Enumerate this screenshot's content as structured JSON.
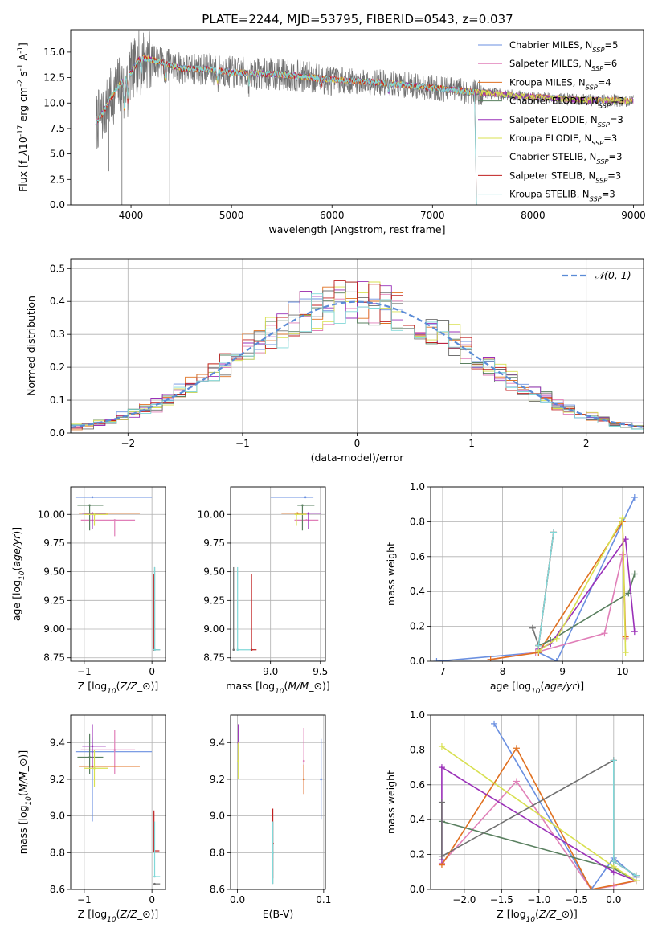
{
  "figure": {
    "title": "PLATE=2244, MJD=53795, FIBERID=0543, z=0.037"
  },
  "colors": {
    "Chabrier MILES": "#6a8fe0",
    "Salpeter MILES": "#e07fb8",
    "Kroupa MILES": "#e07020",
    "Chabrier ELODIE": "#5a8060",
    "Salpeter ELODIE": "#9a30b8",
    "Kroupa ELODIE": "#d8e050",
    "Chabrier STELIB": "#707070",
    "Salpeter STELIB": "#c02020",
    "Kroupa STELIB": "#80d8d8",
    "gaussian": "#5a8bd6"
  },
  "chart_data": [
    {
      "id": "spectrum",
      "type": "line",
      "title": "PLATE=2244, MJD=53795, FIBERID=0543, z=0.037",
      "xlabel": "wavelength [Angstrom, rest frame]",
      "ylabel": "Flux [f$_\\lambda$10$^{-17}$ erg cm$^{-2}$ s$^{-1}$ A$^{-1}$]",
      "xlim": [
        3400,
        9100
      ],
      "ylim": [
        0,
        17.2
      ],
      "xticks": [
        4000,
        5000,
        6000,
        7000,
        8000,
        9000
      ],
      "yticks": [
        0.0,
        2.5,
        5.0,
        7.5,
        10.0,
        12.5,
        15.0
      ],
      "legend_position": "top-right",
      "legend": [
        "Chabrier MILES, N$_{SSP}$=5",
        "Salpeter MILES, N$_{SSP}$=6",
        "Kroupa MILES, N$_{SSP}$=4",
        "Chabrier ELODIE, N$_{SSP}$=3",
        "Salpeter ELODIE, N$_{SSP}$=3",
        "Kroupa ELODIE, N$_{SSP}$=3",
        "Chabrier STELIB, N$_{SSP}$=3",
        "Salpeter STELIB, N$_{SSP}$=3",
        "Kroupa STELIB, N$_{SSP}$=3"
      ],
      "continuum": {
        "x": [
          3650,
          3720,
          3800,
          3900,
          4000,
          4100,
          4300,
          4500,
          4800,
          5000,
          5500,
          6000,
          6500,
          7000,
          7500,
          8000,
          8500,
          9000
        ],
        "y": [
          8.0,
          9.0,
          10.5,
          12.0,
          13.0,
          14.5,
          14.0,
          13.4,
          13.3,
          13.0,
          12.8,
          12.3,
          12.0,
          11.5,
          11.0,
          10.6,
          10.3,
          10.2
        ]
      },
      "data_range": [
        3650,
        9000
      ]
    },
    {
      "id": "residuals",
      "type": "line",
      "xlabel": "(data-model)/error",
      "ylabel": "Normed distribution",
      "xlim": [
        -2.5,
        2.5
      ],
      "ylim": [
        0,
        0.53
      ],
      "xticks": [
        -2,
        -1,
        0,
        1,
        2
      ],
      "yticks": [
        0.0,
        0.1,
        0.2,
        0.3,
        0.4,
        0.5
      ],
      "legend_position": "top-right",
      "legend": [
        "$\\mathcal{N}(0, 1)$"
      ],
      "bin_width": 0.1,
      "gaussian": {
        "mean": 0,
        "sigma": 1
      }
    },
    {
      "id": "age_vs_Z",
      "type": "scatter",
      "xlabel": "Z [log$_{10}$($Z/Z_\\odot$)]",
      "ylabel": "age  [log$_{10}$($age/yr$)]",
      "xlim": [
        -1.2,
        0.2
      ],
      "ylim": [
        8.72,
        10.24
      ],
      "xticks": [
        -1,
        0
      ],
      "yticks": [
        8.75,
        9.0,
        9.25,
        9.5,
        9.75,
        10.0
      ],
      "points": [
        {
          "model": "Chabrier MILES",
          "x": -0.88,
          "y": 10.15,
          "xerr": [
            0.25,
            0.88
          ],
          "yerr": [
            0.0,
            0.0
          ]
        },
        {
          "model": "Salpeter MILES",
          "x": -0.55,
          "y": 9.95,
          "xerr": [
            0.5,
            0.3
          ],
          "yerr": [
            0.14,
            0.0
          ]
        },
        {
          "model": "Kroupa MILES",
          "x": -0.88,
          "y": 10.01,
          "xerr": [
            0.2,
            0.7
          ],
          "yerr": [
            0.0,
            0.0
          ]
        },
        {
          "model": "Chabrier ELODIE",
          "x": -0.92,
          "y": 10.08,
          "xerr": [
            0.18,
            0.2
          ],
          "yerr": [
            0.22,
            0.0
          ]
        },
        {
          "model": "Salpeter ELODIE",
          "x": -0.88,
          "y": 10.01,
          "xerr": [
            0.15,
            0.2
          ],
          "yerr": [
            0.14,
            0.0
          ]
        },
        {
          "model": "Kroupa ELODIE",
          "x": -0.85,
          "y": 10.0,
          "xerr": [
            0.15,
            0.2
          ],
          "yerr": [
            0.1,
            0.0
          ]
        },
        {
          "model": "Chabrier STELIB",
          "x": 0.04,
          "y": 8.82,
          "xerr": [
            0.02,
            0.08
          ],
          "yerr": [
            0.0,
            0.72
          ]
        },
        {
          "model": "Salpeter STELIB",
          "x": 0.03,
          "y": 8.82,
          "xerr": [
            0.02,
            0.02
          ],
          "yerr": [
            0.0,
            0.66
          ]
        },
        {
          "model": "Kroupa STELIB",
          "x": 0.04,
          "y": 8.82,
          "xerr": [
            0.02,
            0.08
          ],
          "yerr": [
            0.0,
            0.72
          ]
        }
      ]
    },
    {
      "id": "age_vs_mass",
      "type": "scatter",
      "xlabel": "mass [log$_{10}$($M/M_\\odot$)]",
      "xlim": [
        8.6,
        9.55
      ],
      "ylim": [
        8.72,
        10.24
      ],
      "xticks": [
        9.0,
        9.5
      ],
      "yticks": [
        8.75,
        9.0,
        9.25,
        9.5,
        9.75,
        10.0
      ],
      "points": [
        {
          "model": "Chabrier MILES",
          "x": 9.35,
          "y": 10.15,
          "xerr": [
            0.35,
            0.08
          ],
          "yerr": [
            0.0,
            0.0
          ]
        },
        {
          "model": "Salpeter MILES",
          "x": 9.36,
          "y": 9.95,
          "xerr": [
            0.12,
            0.12
          ],
          "yerr": [
            0.0,
            0.0
          ]
        },
        {
          "model": "Kroupa MILES",
          "x": 9.27,
          "y": 10.01,
          "xerr": [
            0.16,
            0.1
          ],
          "yerr": [
            0.0,
            0.0
          ]
        },
        {
          "model": "Chabrier ELODIE",
          "x": 9.32,
          "y": 10.08,
          "xerr": [
            0.05,
            0.12
          ],
          "yerr": [
            0.22,
            0.0
          ]
        },
        {
          "model": "Salpeter ELODIE",
          "x": 9.38,
          "y": 10.01,
          "xerr": [
            0.02,
            0.12
          ],
          "yerr": [
            0.14,
            0.0
          ]
        },
        {
          "model": "Kroupa ELODIE",
          "x": 9.26,
          "y": 10.0,
          "xerr": [
            0.02,
            0.1
          ],
          "yerr": [
            0.1,
            0.0
          ]
        },
        {
          "model": "Chabrier STELIB",
          "x": 8.63,
          "y": 8.82,
          "xerr": [
            0.0,
            0.0
          ],
          "yerr": [
            0.0,
            0.72
          ]
        },
        {
          "model": "Salpeter STELIB",
          "x": 8.81,
          "y": 8.82,
          "xerr": [
            0.0,
            0.05
          ],
          "yerr": [
            0.0,
            0.66
          ]
        },
        {
          "model": "Kroupa STELIB",
          "x": 8.67,
          "y": 8.82,
          "xerr": [
            0.0,
            0.14
          ],
          "yerr": [
            0.0,
            0.72
          ]
        }
      ]
    },
    {
      "id": "mass_vs_Z",
      "type": "scatter",
      "xlabel": "Z [log$_{10}$($Z/Z_\\odot$)]",
      "ylabel": "mass [log$_{10}$($M/M_\\odot$)]",
      "xlim": [
        -1.2,
        0.2
      ],
      "ylim": [
        8.6,
        9.55
      ],
      "xticks": [
        -1,
        0
      ],
      "yticks": [
        8.6,
        8.8,
        9.0,
        9.2,
        9.4
      ],
      "points": [
        {
          "model": "Chabrier MILES",
          "x": -0.88,
          "y": 9.35,
          "xerr": [
            0.25,
            0.88
          ],
          "yerr": [
            0.38,
            0.08
          ]
        },
        {
          "model": "Salpeter MILES",
          "x": -0.55,
          "y": 9.36,
          "xerr": [
            0.5,
            0.3
          ],
          "yerr": [
            0.13,
            0.11
          ]
        },
        {
          "model": "Kroupa MILES",
          "x": -0.88,
          "y": 9.27,
          "xerr": [
            0.2,
            0.7
          ],
          "yerr": [
            0.0,
            0.0
          ]
        },
        {
          "model": "Chabrier ELODIE",
          "x": -0.92,
          "y": 9.32,
          "xerr": [
            0.18,
            0.2
          ],
          "yerr": [
            0.09,
            0.13
          ]
        },
        {
          "model": "Salpeter ELODIE",
          "x": -0.88,
          "y": 9.38,
          "xerr": [
            0.15,
            0.2
          ],
          "yerr": [
            0.12,
            0.12
          ]
        },
        {
          "model": "Kroupa ELODIE",
          "x": -0.85,
          "y": 9.26,
          "xerr": [
            0.15,
            0.2
          ],
          "yerr": [
            0.1,
            0.1
          ]
        },
        {
          "model": "Chabrier STELIB",
          "x": 0.04,
          "y": 8.63,
          "xerr": [
            0.02,
            0.08
          ],
          "yerr": [
            0.0,
            0.0
          ]
        },
        {
          "model": "Salpeter STELIB",
          "x": 0.03,
          "y": 8.81,
          "xerr": [
            0.02,
            0.08
          ],
          "yerr": [
            0.0,
            0.22
          ]
        },
        {
          "model": "Kroupa STELIB",
          "x": 0.04,
          "y": 8.67,
          "xerr": [
            0.02,
            0.08
          ],
          "yerr": [
            0.0,
            0.3
          ]
        }
      ]
    },
    {
      "id": "mass_vs_EBV",
      "type": "scatter",
      "xlabel": "E(B-V)",
      "xlim": [
        -0.008,
        0.102
      ],
      "ylim": [
        8.6,
        9.55
      ],
      "xticks": [
        0.0,
        0.1
      ],
      "yticks": [
        8.6,
        8.8,
        9.0,
        9.2,
        9.4
      ],
      "points": [
        {
          "model": "Chabrier MILES",
          "x": 0.097,
          "y": 9.2,
          "yerr": [
            0.22,
            0.22
          ]
        },
        {
          "model": "Salpeter MILES",
          "x": 0.077,
          "y": 9.3,
          "yerr": [
            0.18,
            0.18
          ]
        },
        {
          "model": "Kroupa MILES",
          "x": 0.077,
          "y": 9.2,
          "yerr": [
            0.08,
            0.08
          ]
        },
        {
          "model": "Salpeter ELODIE",
          "x": 0.001,
          "y": 9.4,
          "yerr": [
            0.1,
            0.1
          ]
        },
        {
          "model": "Kroupa ELODIE",
          "x": 0.001,
          "y": 9.3,
          "yerr": [
            0.1,
            0.1
          ]
        },
        {
          "model": "Chabrier STELIB",
          "x": 0.041,
          "y": 8.8,
          "yerr": [
            0.17,
            0.17
          ]
        },
        {
          "model": "Salpeter STELIB",
          "x": 0.041,
          "y": 8.85,
          "yerr": [
            0.19,
            0.19
          ]
        },
        {
          "model": "Kroupa STELIB",
          "x": 0.041,
          "y": 8.8,
          "yerr": [
            0.17,
            0.17
          ]
        }
      ]
    },
    {
      "id": "weight_vs_age",
      "type": "line",
      "xlabel": "age  [log$_{10}$($age/yr$)]",
      "ylabel": "mass weight",
      "xlim": [
        6.8,
        10.35
      ],
      "ylim": [
        0.0,
        1.0
      ],
      "xticks": [
        7,
        8,
        9,
        10
      ],
      "yticks": [
        0.0,
        0.2,
        0.4,
        0.6,
        0.8,
        1.0
      ],
      "series": [
        {
          "model": "Chabrier MILES",
          "x": [
            6.9,
            8.6,
            8.9,
            10.2
          ],
          "y": [
            0.0,
            0.05,
            0.0,
            0.94
          ]
        },
        {
          "model": "Salpeter MILES",
          "x": [
            7.8,
            8.55,
            9.7,
            10.0,
            10.05
          ],
          "y": [
            0.01,
            0.05,
            0.16,
            0.61,
            0.13
          ]
        },
        {
          "model": "Kroupa MILES",
          "x": [
            7.8,
            8.6,
            10.0,
            10.05
          ],
          "y": [
            0.01,
            0.05,
            0.8,
            0.14
          ]
        },
        {
          "model": "Chabrier ELODIE",
          "x": [
            8.6,
            8.8,
            10.1,
            10.2
          ],
          "y": [
            0.09,
            0.12,
            0.39,
            0.5
          ]
        },
        {
          "model": "Salpeter ELODIE",
          "x": [
            8.6,
            8.8,
            10.05,
            10.2
          ],
          "y": [
            0.07,
            0.1,
            0.7,
            0.17
          ]
        },
        {
          "model": "Kroupa ELODIE",
          "x": [
            8.6,
            8.9,
            10.0,
            10.05
          ],
          "y": [
            0.06,
            0.13,
            0.82,
            0.05
          ]
        },
        {
          "model": "Chabrier STELIB",
          "x": [
            8.5,
            8.6,
            8.85
          ],
          "y": [
            0.19,
            0.09,
            0.74
          ]
        },
        {
          "model": "Salpeter STELIB",
          "x": [
            8.6,
            8.85
          ],
          "y": [
            0.09,
            0.74
          ]
        },
        {
          "model": "Kroupa STELIB",
          "x": [
            8.6,
            8.85
          ],
          "y": [
            0.09,
            0.74
          ]
        }
      ]
    },
    {
      "id": "weight_vs_Z",
      "type": "line",
      "xlabel": "Z [log$_{10}$($Z/Z_\\odot$)]",
      "ylabel": "mass weight",
      "xlim": [
        -2.45,
        0.4
      ],
      "ylim": [
        0.0,
        1.0
      ],
      "xticks": [
        -2.0,
        -1.5,
        -1.0,
        -0.5,
        0.0
      ],
      "yticks": [
        0.0,
        0.2,
        0.4,
        0.6,
        0.8,
        1.0
      ],
      "series": [
        {
          "model": "Chabrier MILES",
          "x": [
            -1.6,
            -0.3,
            0.0,
            0.3
          ],
          "y": [
            0.95,
            0.0,
            0.18,
            0.07
          ]
        },
        {
          "model": "Salpeter MILES",
          "x": [
            -2.3,
            -1.3,
            -0.3,
            0.0,
            0.3
          ],
          "y": [
            0.15,
            0.62,
            0.0,
            0.02,
            0.05
          ]
        },
        {
          "model": "Kroupa MILES",
          "x": [
            -2.3,
            -1.3,
            -0.3,
            0.3
          ],
          "y": [
            0.14,
            0.81,
            0.0,
            0.05
          ]
        },
        {
          "model": "Chabrier ELODIE",
          "x": [
            -2.3,
            0.0,
            0.3
          ],
          "y": [
            0.39,
            0.12,
            0.05
          ]
        },
        {
          "model": "Salpeter ELODIE",
          "x": [
            -2.3,
            -2.3,
            0.0,
            0.3
          ],
          "y": [
            0.17,
            0.7,
            0.1,
            0.05
          ]
        },
        {
          "model": "Kroupa ELODIE",
          "x": [
            -2.3,
            0.0,
            0.3
          ],
          "y": [
            0.82,
            0.13,
            0.05
          ]
        },
        {
          "model": "Chabrier STELIB",
          "x": [
            -2.3,
            -2.3,
            0.0,
            0.0,
            0.3
          ],
          "y": [
            0.5,
            0.19,
            0.74,
            0.16,
            0.08
          ]
        },
        {
          "model": "Salpeter STELIB",
          "x": [
            0.0,
            0.0,
            0.3
          ],
          "y": [
            0.74,
            0.16,
            0.08
          ]
        },
        {
          "model": "Kroupa STELIB",
          "x": [
            0.0,
            0.0,
            0.3
          ],
          "y": [
            0.74,
            0.16,
            0.08
          ]
        }
      ]
    }
  ]
}
